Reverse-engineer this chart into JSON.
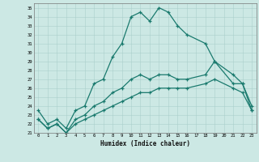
{
  "title": "",
  "xlabel": "Humidex (Indice chaleur)",
  "ylabel": "",
  "xlim": [
    -0.5,
    23.5
  ],
  "ylim": [
    21,
    35.5
  ],
  "yticks": [
    21,
    22,
    23,
    24,
    25,
    26,
    27,
    28,
    29,
    30,
    31,
    32,
    33,
    34,
    35
  ],
  "xticks": [
    0,
    1,
    2,
    3,
    4,
    5,
    6,
    7,
    8,
    9,
    10,
    11,
    12,
    13,
    14,
    15,
    16,
    17,
    18,
    19,
    20,
    21,
    22,
    23
  ],
  "line_color": "#1a7a6e",
  "bg_color": "#cce8e4",
  "grid_color": "#aacfcb",
  "series_max_x": [
    0,
    1,
    2,
    3,
    4,
    5,
    6,
    7,
    8,
    9,
    10,
    11,
    12,
    13,
    14,
    15,
    16,
    18,
    19,
    21,
    22,
    23
  ],
  "series_max_y": [
    23.5,
    22.0,
    22.5,
    21.5,
    23.5,
    24.0,
    26.5,
    27.0,
    29.5,
    31.0,
    34.0,
    34.5,
    33.5,
    35.0,
    34.5,
    33.0,
    32.0,
    31.0,
    29.0,
    26.5,
    26.5,
    24.0
  ],
  "series_mid_x": [
    0,
    1,
    2,
    3,
    4,
    5,
    6,
    7,
    8,
    9,
    10,
    11,
    12,
    13,
    14,
    15,
    16,
    18,
    19,
    21,
    22,
    23
  ],
  "series_mid_y": [
    22.5,
    21.5,
    22.0,
    21.0,
    22.5,
    23.0,
    24.0,
    24.5,
    25.5,
    26.0,
    27.0,
    27.5,
    27.0,
    27.5,
    27.5,
    27.0,
    27.0,
    27.5,
    29.0,
    27.5,
    26.5,
    23.5
  ],
  "series_min_x": [
    0,
    1,
    2,
    3,
    4,
    5,
    6,
    7,
    8,
    9,
    10,
    11,
    12,
    13,
    14,
    15,
    16,
    18,
    19,
    21,
    22,
    23
  ],
  "series_min_y": [
    22.5,
    21.5,
    22.0,
    21.0,
    22.0,
    22.5,
    23.0,
    23.5,
    24.0,
    24.5,
    25.0,
    25.5,
    25.5,
    26.0,
    26.0,
    26.0,
    26.0,
    26.5,
    27.0,
    26.0,
    25.5,
    23.5
  ]
}
